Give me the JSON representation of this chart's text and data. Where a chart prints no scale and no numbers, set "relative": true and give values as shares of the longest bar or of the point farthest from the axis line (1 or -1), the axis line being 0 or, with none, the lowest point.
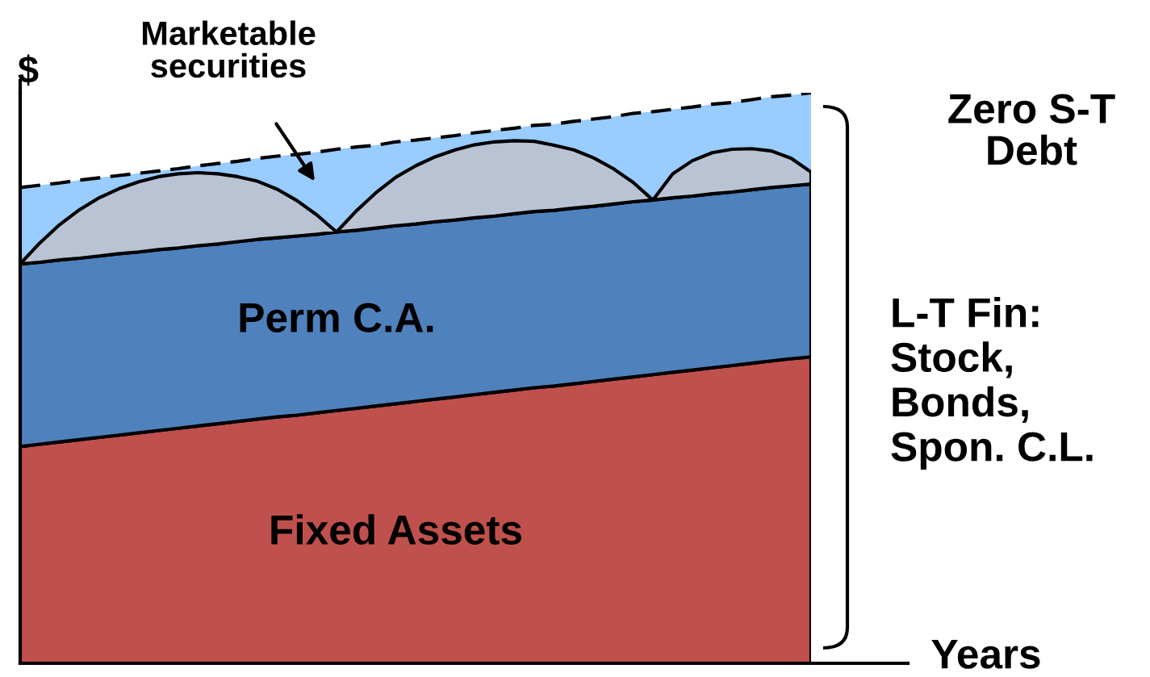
{
  "chart_data": {
    "type": "area",
    "stacked": true,
    "relative": true,
    "xlabel": "Years",
    "ylabel": "$",
    "categories": [
      null,
      null,
      null,
      null,
      null,
      null,
      null,
      null,
      null,
      null,
      null,
      null,
      null,
      null,
      null,
      null,
      null,
      null,
      null,
      null,
      null,
      null,
      null,
      null,
      null,
      null,
      null,
      null,
      null,
      null,
      null,
      null,
      null,
      null,
      null,
      null,
      null,
      null,
      null,
      null,
      null
    ],
    "series": [
      {
        "name": "Fixed Assets",
        "color": "#c0504d",
        "values": [
          0.38,
          0.384,
          0.388,
          0.392,
          0.396,
          0.4,
          0.404,
          0.408,
          0.412,
          0.416,
          0.42,
          0.424,
          0.428,
          0.432,
          0.435,
          0.439,
          0.443,
          0.447,
          0.451,
          0.455,
          0.459,
          0.463,
          0.467,
          0.471,
          0.475,
          0.479,
          0.483,
          0.486,
          0.49,
          0.494,
          0.498,
          0.502,
          0.506,
          0.51,
          0.514,
          0.518,
          0.522,
          0.526,
          0.53,
          0.534,
          0.537
        ]
      },
      {
        "name": "Perm C.A.",
        "color": "#4f81bd",
        "values": [
          0.32,
          0.319,
          0.319,
          0.318,
          0.318,
          0.318,
          0.317,
          0.317,
          0.316,
          0.316,
          0.315,
          0.315,
          0.315,
          0.314,
          0.314,
          0.313,
          0.313,
          0.312,
          0.312,
          0.312,
          0.311,
          0.311,
          0.31,
          0.31,
          0.309,
          0.309,
          0.309,
          0.308,
          0.308,
          0.307,
          0.307,
          0.307,
          0.306,
          0.306,
          0.305,
          0.305,
          0.304,
          0.304,
          0.304,
          0.303,
          0.303
        ]
      },
      {
        "color": "#b9c3d3",
        "values": [
          0,
          0.034,
          0.062,
          0.085,
          0.102,
          0.114,
          0.123,
          0.128,
          0.13,
          0.128,
          0.123,
          0.114,
          0.102,
          0.085,
          0.062,
          0.034,
          0,
          0.034,
          0.062,
          0.085,
          0.102,
          0.114,
          0.123,
          0.128,
          0.13,
          0.128,
          0.123,
          0.114,
          0.102,
          0.085,
          0.062,
          0.034,
          0,
          0.042,
          0.062,
          0.072,
          0.075,
          0.072,
          0.064,
          0.048,
          0.021
        ]
      },
      {
        "color": "#99ccff",
        "line_style": "dashed",
        "values": [
          0.134,
          0.101,
          0.073,
          0.052,
          0.035,
          0.023,
          0.015,
          0.01,
          0.009,
          0.012,
          0.018,
          0.027,
          0.04,
          0.058,
          0.081,
          0.11,
          0.145,
          0.112,
          0.083,
          0.062,
          0.045,
          0.033,
          0.025,
          0.021,
          0.02,
          0.022,
          0.028,
          0.037,
          0.05,
          0.068,
          0.091,
          0.121,
          0.155,
          0.113,
          0.094,
          0.085,
          0.082,
          0.086,
          0.095,
          0.111,
          0.139
        ]
      }
    ],
    "annotations": [
      "Marketable securities",
      "Zero S-T Debt",
      "L-T Fin: Stock, Bonds, Spon. C.L."
    ],
    "legend": false
  }
}
